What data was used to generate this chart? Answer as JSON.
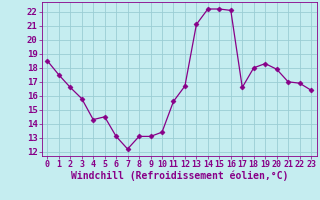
{
  "x": [
    0,
    1,
    2,
    3,
    4,
    5,
    6,
    7,
    8,
    9,
    10,
    11,
    12,
    13,
    14,
    15,
    16,
    17,
    18,
    19,
    20,
    21,
    22,
    23
  ],
  "y": [
    18.5,
    17.5,
    16.6,
    15.8,
    14.3,
    14.5,
    13.1,
    12.2,
    13.1,
    13.1,
    13.4,
    15.6,
    16.7,
    21.1,
    22.2,
    22.2,
    22.1,
    16.6,
    18.0,
    18.3,
    17.9,
    17.0,
    16.9,
    16.4
  ],
  "line_color": "#880088",
  "marker": "D",
  "marker_size": 2.5,
  "bg_color": "#c5edf0",
  "grid_color": "#9acdd4",
  "xlabel": "Windchill (Refroidissement éolien,°C)",
  "ylabel_ticks": [
    12,
    13,
    14,
    15,
    16,
    17,
    18,
    19,
    20,
    21,
    22
  ],
  "ylim": [
    11.7,
    22.7
  ],
  "xlim": [
    -0.5,
    23.5
  ],
  "xticks": [
    0,
    1,
    2,
    3,
    4,
    5,
    6,
    7,
    8,
    9,
    10,
    11,
    12,
    13,
    14,
    15,
    16,
    17,
    18,
    19,
    20,
    21,
    22,
    23
  ],
  "label_color": "#880088",
  "tick_color": "#880088",
  "font_size_xlabel": 7.0,
  "font_size_ytick": 6.5,
  "font_size_xtick": 6.0,
  "linewidth": 0.9
}
